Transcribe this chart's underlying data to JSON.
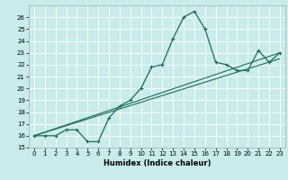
{
  "xlabel": "Humidex (Indice chaleur)",
  "ylabel": "",
  "bg_color": "#c8ecec",
  "grid_color": "#ffffff",
  "line_color": "#1a6b5a",
  "xlim": [
    -0.5,
    23.5
  ],
  "ylim": [
    15,
    27
  ],
  "yticks": [
    15,
    16,
    17,
    18,
    19,
    20,
    21,
    22,
    23,
    24,
    25,
    26
  ],
  "xticks": [
    0,
    1,
    2,
    3,
    4,
    5,
    6,
    7,
    8,
    9,
    10,
    11,
    12,
    13,
    14,
    15,
    16,
    17,
    18,
    19,
    20,
    21,
    22,
    23
  ],
  "line1_x": [
    0,
    1,
    2,
    3,
    4,
    5,
    6,
    7,
    8,
    9,
    10,
    11,
    12,
    13,
    14,
    15,
    16,
    17,
    18,
    19,
    20,
    21,
    22,
    23
  ],
  "line1_y": [
    16,
    16,
    16,
    16.5,
    16.5,
    15.5,
    15.5,
    17.5,
    18.5,
    19.0,
    20.0,
    21.8,
    22.0,
    24.2,
    26.0,
    26.5,
    25.0,
    22.2,
    22.0,
    21.5,
    21.5,
    23.2,
    22.2,
    23.0
  ],
  "line2_x": [
    0,
    23
  ],
  "line2_y": [
    16,
    23
  ],
  "line3_x": [
    0,
    23
  ],
  "line3_y": [
    16,
    22.5
  ]
}
